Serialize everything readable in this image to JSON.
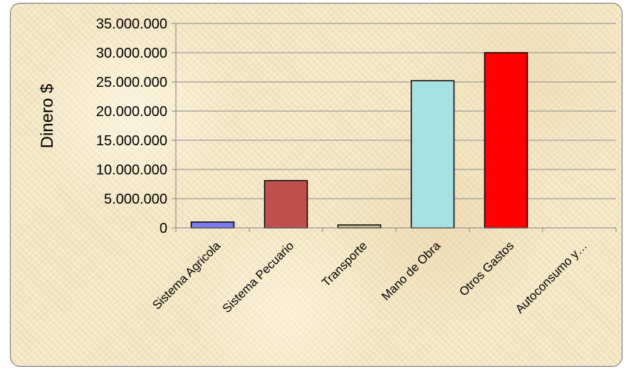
{
  "chart_data": {
    "type": "bar",
    "categories": [
      "Sistema Agricola",
      "Sistema Pecuario",
      "Transporte",
      "Mano de Obra",
      "Otros Gastos",
      "Autoconsumo y…"
    ],
    "values": [
      1000000,
      8100000,
      500000,
      25200000,
      30000000,
      0
    ],
    "bar_colors": [
      "#7b7bf0",
      "#c0504d",
      "#c4bd97",
      "#a6e1e4",
      "#ff0000",
      "#c8c8c8"
    ],
    "title": "",
    "xlabel": "",
    "ylabel": "Dinero $",
    "ylim": [
      0,
      35000000
    ],
    "yticks": [
      0,
      5000000,
      10000000,
      15000000,
      20000000,
      25000000,
      30000000,
      35000000
    ],
    "ytick_labels": [
      "0",
      "5.000.000",
      "10.000.000",
      "15.000.000",
      "20.000.000",
      "25.000.000",
      "30.000.000",
      "35.000.000"
    ],
    "grid": true,
    "legend": "none"
  }
}
